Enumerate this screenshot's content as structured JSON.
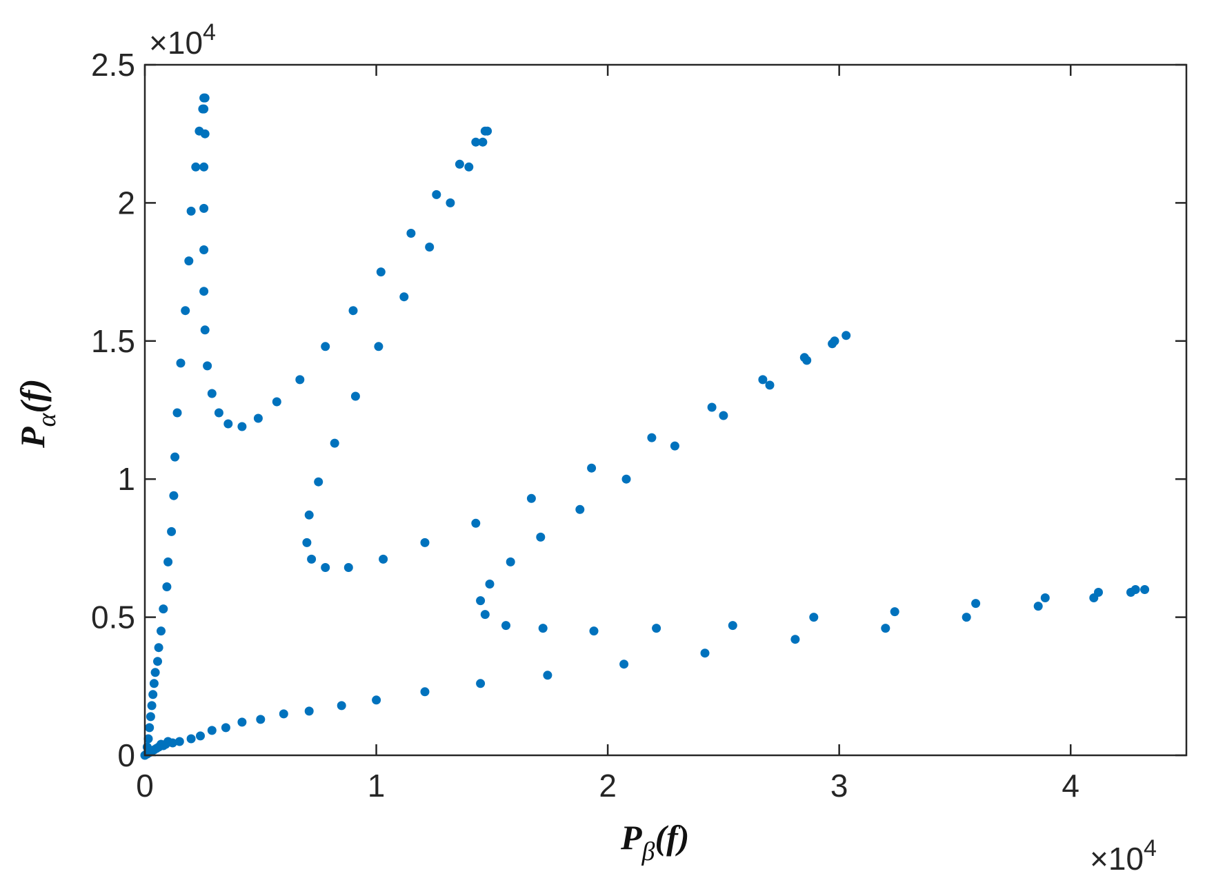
{
  "chart_data": {
    "type": "scatter",
    "title": "",
    "xlabel": {
      "main": "P",
      "sub": "β",
      "suffix": "(f)"
    },
    "ylabel": {
      "main": "P",
      "sub": "α",
      "suffix": "(f)"
    },
    "x_multiplier": "×10",
    "x_multiplier_exp": "4",
    "y_multiplier": "×10",
    "y_multiplier_exp": "4",
    "xlim": [
      0,
      45000
    ],
    "ylim": [
      0,
      25000
    ],
    "x_ticks": [
      0,
      10000,
      20000,
      30000,
      40000
    ],
    "x_tick_labels": [
      "0",
      "1",
      "2",
      "3",
      "4"
    ],
    "y_ticks": [
      0,
      5000,
      10000,
      15000,
      20000,
      25000
    ],
    "y_tick_labels": [
      "0",
      "0.5",
      "1",
      "1.5",
      "2",
      "2.5"
    ],
    "grid": false,
    "marker_color": "#0072BD",
    "series": [
      {
        "points": [
          [
            0,
            0
          ],
          [
            100,
            300
          ],
          [
            150,
            600
          ],
          [
            200,
            1000
          ],
          [
            250,
            1400
          ],
          [
            300,
            1800
          ],
          [
            350,
            2200
          ],
          [
            400,
            2600
          ],
          [
            450,
            3000
          ],
          [
            550,
            3400
          ],
          [
            600,
            3900
          ],
          [
            700,
            4500
          ],
          [
            800,
            5300
          ],
          [
            950,
            6100
          ],
          [
            1000,
            7000
          ],
          [
            1150,
            8100
          ],
          [
            1250,
            9400
          ],
          [
            1300,
            10800
          ],
          [
            1400,
            12400
          ],
          [
            1550,
            14200
          ],
          [
            1750,
            16100
          ],
          [
            1900,
            17900
          ],
          [
            2000,
            19700
          ],
          [
            2200,
            21300
          ],
          [
            2350,
            22600
          ],
          [
            2500,
            23400
          ],
          [
            2550,
            23800
          ],
          [
            2600,
            23800
          ],
          [
            2550,
            23400
          ],
          [
            2600,
            22500
          ],
          [
            2550,
            21300
          ],
          [
            2550,
            19800
          ],
          [
            2550,
            18300
          ],
          [
            2550,
            16800
          ],
          [
            2600,
            15400
          ],
          [
            2700,
            14100
          ],
          [
            2900,
            13100
          ],
          [
            3200,
            12400
          ],
          [
            3600,
            12000
          ],
          [
            4200,
            11900
          ],
          [
            4900,
            12200
          ],
          [
            5700,
            12800
          ],
          [
            6700,
            13600
          ],
          [
            7800,
            14800
          ],
          [
            9000,
            16100
          ],
          [
            10200,
            17500
          ],
          [
            11500,
            18900
          ],
          [
            12600,
            20300
          ],
          [
            13600,
            21400
          ],
          [
            14300,
            22200
          ],
          [
            14700,
            22600
          ],
          [
            14800,
            22600
          ],
          [
            14600,
            22200
          ],
          [
            14000,
            21300
          ],
          [
            13200,
            20000
          ],
          [
            12300,
            18400
          ],
          [
            11200,
            16600
          ],
          [
            10100,
            14800
          ],
          [
            9100,
            13000
          ],
          [
            8200,
            11300
          ],
          [
            7500,
            9900
          ],
          [
            7100,
            8700
          ],
          [
            7000,
            7700
          ],
          [
            7200,
            7100
          ],
          [
            7800,
            6800
          ],
          [
            8800,
            6800
          ],
          [
            10300,
            7100
          ],
          [
            12100,
            7700
          ],
          [
            14300,
            8400
          ],
          [
            16700,
            9300
          ],
          [
            19300,
            10400
          ],
          [
            21900,
            11500
          ],
          [
            24500,
            12600
          ],
          [
            26700,
            13600
          ],
          [
            28500,
            14400
          ],
          [
            29700,
            14900
          ],
          [
            30300,
            15200
          ],
          [
            29800,
            15000
          ],
          [
            28600,
            14300
          ],
          [
            27000,
            13400
          ],
          [
            25000,
            12300
          ],
          [
            22900,
            11200
          ],
          [
            20800,
            10000
          ],
          [
            18800,
            8900
          ],
          [
            17100,
            7900
          ],
          [
            15800,
            7000
          ],
          [
            14900,
            6200
          ],
          [
            14500,
            5600
          ],
          [
            14700,
            5100
          ],
          [
            15600,
            4700
          ],
          [
            17200,
            4600
          ],
          [
            19400,
            4500
          ],
          [
            22100,
            4600
          ],
          [
            25400,
            4700
          ],
          [
            28900,
            5000
          ],
          [
            32400,
            5200
          ],
          [
            35900,
            5500
          ],
          [
            38900,
            5700
          ],
          [
            41200,
            5900
          ],
          [
            42800,
            6000
          ],
          [
            43200,
            6000
          ],
          [
            42600,
            5900
          ],
          [
            41000,
            5700
          ],
          [
            38600,
            5400
          ],
          [
            35500,
            5000
          ],
          [
            32000,
            4600
          ],
          [
            28100,
            4200
          ],
          [
            24200,
            3700
          ],
          [
            20700,
            3300
          ],
          [
            17400,
            2900
          ],
          [
            14500,
            2600
          ],
          [
            12100,
            2300
          ],
          [
            10000,
            2000
          ],
          [
            8500,
            1800
          ],
          [
            7100,
            1600
          ],
          [
            6000,
            1500
          ],
          [
            5000,
            1300
          ],
          [
            4200,
            1200
          ],
          [
            3500,
            1000
          ],
          [
            2900,
            900
          ],
          [
            2400,
            700
          ],
          [
            2000,
            600
          ],
          [
            1500,
            500
          ],
          [
            1200,
            450
          ],
          [
            1000,
            500
          ],
          [
            900,
            400
          ],
          [
            800,
            350
          ],
          [
            700,
            400
          ],
          [
            600,
            300
          ],
          [
            500,
            250
          ],
          [
            400,
            200
          ],
          [
            300,
            150
          ],
          [
            200,
            100
          ],
          [
            100,
            50
          ],
          [
            50,
            30
          ]
        ]
      }
    ]
  }
}
